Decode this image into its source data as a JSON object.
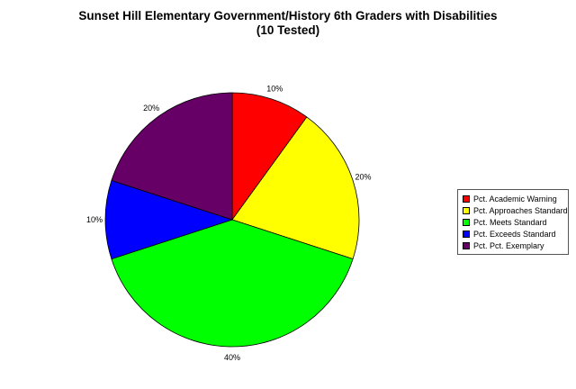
{
  "chart_data": {
    "type": "pie",
    "title": "Sunset Hill Elementary Government/History 6th Graders with Disabilities",
    "subtitle": "(10 Tested)",
    "legend_position": "right",
    "slices": [
      {
        "label": "Pct. Academic Warning",
        "value": 10,
        "display": "10%",
        "color": "#ff0000"
      },
      {
        "label": "Pct. Approaches Standard",
        "value": 20,
        "display": "20%",
        "color": "#ffff00"
      },
      {
        "label": "Pct. Meets Standard",
        "value": 40,
        "display": "40%",
        "color": "#00ff00"
      },
      {
        "label": "Pct. Exceeds Standard",
        "value": 10,
        "display": "10%",
        "color": "#0000ff"
      },
      {
        "label": "Pct. Pct. Exemplary",
        "value": 20,
        "display": "20%",
        "color": "#660066"
      }
    ]
  }
}
